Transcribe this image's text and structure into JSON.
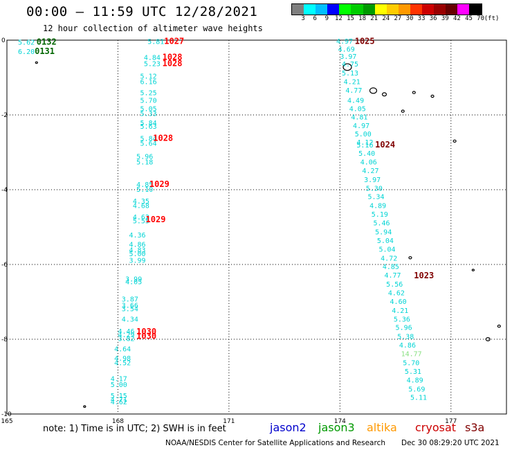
{
  "header": {
    "title": "00:00 — 11:59 UTC 12/28/2021",
    "subtitle": "12 hour collection of altimeter wave heights"
  },
  "scale": {
    "unit": "(ft)",
    "labels": [
      "3",
      "6",
      "9",
      "12",
      "15",
      "18",
      "21",
      "24",
      "27",
      "30",
      "33",
      "36",
      "39",
      "42",
      "45",
      "70"
    ],
    "colors": [
      "#7f7f7f",
      "#00ffff",
      "#00bfff",
      "#0000ff",
      "#00ff00",
      "#00cc00",
      "#009900",
      "#ffff00",
      "#ffcc00",
      "#ff9900",
      "#ff3300",
      "#cc0000",
      "#990000",
      "#660000",
      "#ff00ff",
      "#000000"
    ]
  },
  "chart_data": {
    "type": "scatter",
    "xlim": [
      165,
      178.5
    ],
    "ylim": [
      -10,
      0
    ],
    "x_ticks": [
      165,
      168,
      171,
      174,
      177
    ],
    "x_tick_labels": [
      "165",
      "168",
      "171",
      "174",
      "177"
    ],
    "y_ticks": [
      0,
      -2,
      -4,
      -6,
      -8,
      -10
    ],
    "y_tick_labels": [
      "0",
      "-2",
      "-4",
      "-6",
      "-8",
      "-10"
    ],
    "grid": true,
    "series": [
      {
        "name": "jason3",
        "color": "#00d4d4",
        "points": [
          {
            "x": 165.3,
            "y": -0.05,
            "label": "5.62"
          },
          {
            "x": 165.3,
            "y": -0.3,
            "label": "6.20"
          },
          {
            "x": 168.8,
            "y": -0.03,
            "label": "5.81"
          },
          {
            "x": 168.7,
            "y": -0.45,
            "label": "4.84"
          },
          {
            "x": 168.7,
            "y": -0.62,
            "label": "5.23"
          },
          {
            "x": 168.6,
            "y": -0.95,
            "label": "5.12"
          },
          {
            "x": 168.6,
            "y": -1.1,
            "label": "6.16"
          },
          {
            "x": 168.6,
            "y": -1.4,
            "label": "5.25"
          },
          {
            "x": 168.6,
            "y": -1.6,
            "label": "5.70"
          },
          {
            "x": 168.6,
            "y": -1.82,
            "label": "5.05"
          },
          {
            "x": 168.6,
            "y": -1.95,
            "label": "5.33"
          },
          {
            "x": 168.6,
            "y": -2.2,
            "label": "5.84"
          },
          {
            "x": 168.6,
            "y": -2.3,
            "label": "5.63"
          },
          {
            "x": 168.6,
            "y": -2.62,
            "label": "5.84"
          },
          {
            "x": 168.6,
            "y": -2.75,
            "label": "5.64"
          },
          {
            "x": 168.5,
            "y": -3.1,
            "label": "5.96"
          },
          {
            "x": 168.5,
            "y": -3.25,
            "label": "5.18"
          },
          {
            "x": 168.5,
            "y": -3.85,
            "label": "4.85"
          },
          {
            "x": 168.5,
            "y": -3.98,
            "label": "5.10"
          },
          {
            "x": 168.4,
            "y": -4.3,
            "label": "4.35"
          },
          {
            "x": 168.4,
            "y": -4.42,
            "label": "4.68"
          },
          {
            "x": 168.4,
            "y": -4.72,
            "label": "4.62"
          },
          {
            "x": 168.4,
            "y": -4.82,
            "label": "5.55"
          },
          {
            "x": 168.3,
            "y": -5.2,
            "label": "4.36"
          },
          {
            "x": 168.3,
            "y": -5.45,
            "label": "4.86"
          },
          {
            "x": 168.3,
            "y": -5.6,
            "label": "4.83"
          },
          {
            "x": 168.3,
            "y": -5.7,
            "label": "5.00"
          },
          {
            "x": 168.3,
            "y": -5.88,
            "label": "3.99"
          },
          {
            "x": 168.2,
            "y": -6.38,
            "label": "3.99"
          },
          {
            "x": 168.2,
            "y": -6.45,
            "label": "4.05"
          },
          {
            "x": 168.1,
            "y": -6.92,
            "label": "3.87"
          },
          {
            "x": 168.1,
            "y": -7.08,
            "label": "3.66"
          },
          {
            "x": 168.1,
            "y": -7.18,
            "label": "3.54"
          },
          {
            "x": 168.1,
            "y": -7.45,
            "label": "4.34"
          },
          {
            "x": 168.0,
            "y": -7.78,
            "label": "4.46"
          },
          {
            "x": 168.0,
            "y": -7.87,
            "label": "4.29"
          },
          {
            "x": 168.0,
            "y": -7.97,
            "label": "3.82"
          },
          {
            "x": 167.9,
            "y": -8.25,
            "label": "4.64"
          },
          {
            "x": 167.9,
            "y": -8.5,
            "label": "4.98"
          },
          {
            "x": 167.9,
            "y": -8.62,
            "label": "4.52"
          },
          {
            "x": 167.8,
            "y": -9.05,
            "label": "4.17"
          },
          {
            "x": 167.8,
            "y": -9.2,
            "label": "5.00"
          },
          {
            "x": 167.8,
            "y": -9.5,
            "label": "5.15"
          },
          {
            "x": 167.8,
            "y": -9.6,
            "label": "4.71"
          },
          {
            "x": 167.8,
            "y": -9.67,
            "label": "4.62"
          },
          {
            "x": 173.9,
            "y": -0.02,
            "label": "4.97"
          },
          {
            "x": 173.95,
            "y": -0.23,
            "label": "4.69"
          },
          {
            "x": 174.0,
            "y": -0.43,
            "label": "3.97"
          },
          {
            "x": 174.05,
            "y": -0.63,
            "label": "4.75"
          },
          {
            "x": 174.05,
            "y": -0.87,
            "label": "5.13"
          },
          {
            "x": 174.1,
            "y": -1.1,
            "label": "4.21"
          },
          {
            "x": 174.15,
            "y": -1.33,
            "label": "4.77"
          },
          {
            "x": 174.2,
            "y": -1.6,
            "label": "4.49"
          },
          {
            "x": 174.25,
            "y": -1.82,
            "label": "4.05"
          },
          {
            "x": 174.3,
            "y": -2.05,
            "label": "4.81"
          },
          {
            "x": 174.35,
            "y": -2.28,
            "label": "4.97"
          },
          {
            "x": 174.4,
            "y": -2.5,
            "label": "5.00"
          },
          {
            "x": 174.45,
            "y": -2.72,
            "label": "4.12"
          },
          {
            "x": 174.45,
            "y": -2.8,
            "label": "5.16"
          },
          {
            "x": 174.5,
            "y": -3.02,
            "label": "5.40"
          },
          {
            "x": 174.55,
            "y": -3.25,
            "label": "4.06"
          },
          {
            "x": 174.6,
            "y": -3.48,
            "label": "4.27"
          },
          {
            "x": 174.65,
            "y": -3.72,
            "label": "3.97"
          },
          {
            "x": 174.7,
            "y": -3.95,
            "label": "5.30"
          },
          {
            "x": 174.75,
            "y": -4.18,
            "label": "5.34"
          },
          {
            "x": 174.8,
            "y": -4.42,
            "label": "4.89"
          },
          {
            "x": 174.85,
            "y": -4.65,
            "label": "5.19"
          },
          {
            "x": 174.9,
            "y": -4.88,
            "label": "5.46"
          },
          {
            "x": 174.95,
            "y": -5.12,
            "label": "5.94"
          },
          {
            "x": 175.0,
            "y": -5.35,
            "label": "5.04"
          },
          {
            "x": 175.05,
            "y": -5.58,
            "label": "5.04"
          },
          {
            "x": 175.1,
            "y": -5.82,
            "label": "4.72"
          },
          {
            "x": 175.15,
            "y": -6.05,
            "label": "4.85"
          },
          {
            "x": 175.2,
            "y": -6.28,
            "label": "4.77"
          },
          {
            "x": 175.25,
            "y": -6.52,
            "label": "5.56"
          },
          {
            "x": 175.3,
            "y": -6.75,
            "label": "4.62"
          },
          {
            "x": 175.35,
            "y": -6.98,
            "label": "4.60"
          },
          {
            "x": 175.4,
            "y": -7.22,
            "label": "4.21"
          },
          {
            "x": 175.45,
            "y": -7.45,
            "label": "5.36"
          },
          {
            "x": 175.5,
            "y": -7.68,
            "label": "5.96"
          },
          {
            "x": 175.55,
            "y": -7.92,
            "label": "5.38"
          },
          {
            "x": 175.6,
            "y": -8.15,
            "label": "4.86"
          },
          {
            "x": 175.7,
            "y": -8.62,
            "label": "5.70"
          },
          {
            "x": 175.75,
            "y": -8.85,
            "label": "5.31"
          },
          {
            "x": 175.8,
            "y": -9.08,
            "label": "4.89"
          },
          {
            "x": 175.85,
            "y": -9.32,
            "label": "5.69"
          },
          {
            "x": 175.9,
            "y": -9.55,
            "label": "5.11"
          }
        ]
      },
      {
        "name": "jason3",
        "color": "#88e080",
        "points": [
          {
            "x": 175.65,
            "y": -8.38,
            "label": "14.77"
          }
        ]
      },
      {
        "name": "jason3",
        "color": "#006600",
        "points": [
          {
            "x": 165.8,
            "y": -0.05,
            "label": "0132"
          },
          {
            "x": 165.75,
            "y": -0.3,
            "label": "0131"
          }
        ]
      },
      {
        "name": "cryosat",
        "color": "#ff0000",
        "points": [
          {
            "x": 169.25,
            "y": -0.03,
            "label": "1027"
          },
          {
            "x": 169.2,
            "y": -0.45,
            "label": "1028"
          },
          {
            "x": 169.2,
            "y": -0.62,
            "label": "1028"
          },
          {
            "x": 168.95,
            "y": -2.62,
            "label": "1028"
          },
          {
            "x": 168.85,
            "y": -3.85,
            "label": "1029"
          },
          {
            "x": 168.75,
            "y": -4.8,
            "label": "1029"
          },
          {
            "x": 168.5,
            "y": -7.8,
            "label": "1030"
          },
          {
            "x": 168.5,
            "y": -7.92,
            "label": "1030"
          }
        ]
      },
      {
        "name": "s3a",
        "color": "#800000",
        "points": [
          {
            "x": 174.4,
            "y": -0.03,
            "label": "1025"
          },
          {
            "x": 174.95,
            "y": -2.8,
            "label": "1024"
          },
          {
            "x": 176.0,
            "y": -6.3,
            "label": "1023"
          }
        ]
      }
    ]
  },
  "footer": {
    "note": "note: 1) Time is in UTC; 2) SWH is in feet",
    "legend": [
      {
        "label": "jason2",
        "color": "#0000cc"
      },
      {
        "label": "jason3",
        "color": "#009900"
      },
      {
        "label": "altika",
        "color": "#ff9900"
      },
      {
        "label": "cryosat",
        "color": "#cc0000"
      },
      {
        "label": "s3a",
        "color": "#800000"
      }
    ],
    "credit": "NOAA/NESDIS Center for Satellite Applications and Research",
    "generated": "Dec 30 08:29:20 UTC 2021"
  }
}
